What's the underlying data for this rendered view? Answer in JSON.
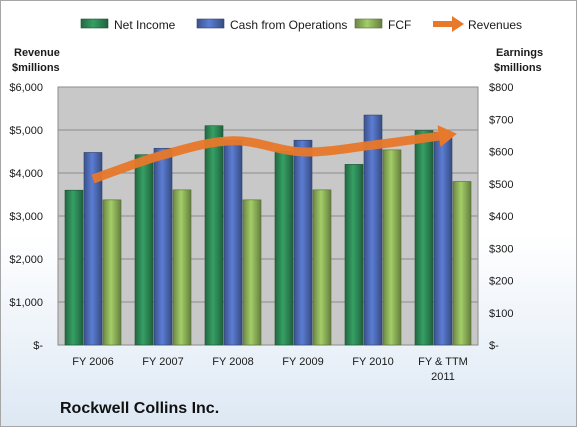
{
  "chart_data": {
    "type": "bar",
    "title": "Rockwell Collins Inc.",
    "categories": [
      "FY 2006",
      "FY 2007",
      "FY 2008",
      "FY 2009",
      "FY 2010",
      "FY & TTM 2011"
    ],
    "left_axis_label": [
      "Revenue",
      "$millions"
    ],
    "right_axis_label": [
      "Earnings",
      "$millions"
    ],
    "left_ylim": [
      0,
      6000
    ],
    "right_ylim": [
      0,
      800
    ],
    "left_ticks": [
      "$-",
      "$1,000",
      "$2,000",
      "$3,000",
      "$4,000",
      "$5,000",
      "$6,000"
    ],
    "right_ticks": [
      "$-",
      "$100",
      "$200",
      "$300",
      "$400",
      "$500",
      "$600",
      "$700",
      "$800"
    ],
    "grid": true,
    "legend_position": "top",
    "series": [
      {
        "name": "Net Income",
        "axis": "right",
        "kind": "bar",
        "color": "#2e8b57",
        "values": [
          480,
          590,
          680,
          600,
          560,
          665
        ]
      },
      {
        "name": "Cash from Operations",
        "axis": "right",
        "kind": "bar",
        "color": "#4f6db8",
        "values": [
          597,
          610,
          635,
          635,
          713,
          660
        ]
      },
      {
        "name": "FCF",
        "axis": "right",
        "kind": "bar",
        "color": "#8fb35a",
        "values": [
          450,
          481,
          450,
          481,
          605,
          507
        ]
      },
      {
        "name": "Revenues",
        "axis": "left",
        "kind": "line",
        "color": "#e8782a",
        "values": [
          3860,
          4420,
          4750,
          4490,
          4650,
          4870
        ]
      }
    ]
  }
}
